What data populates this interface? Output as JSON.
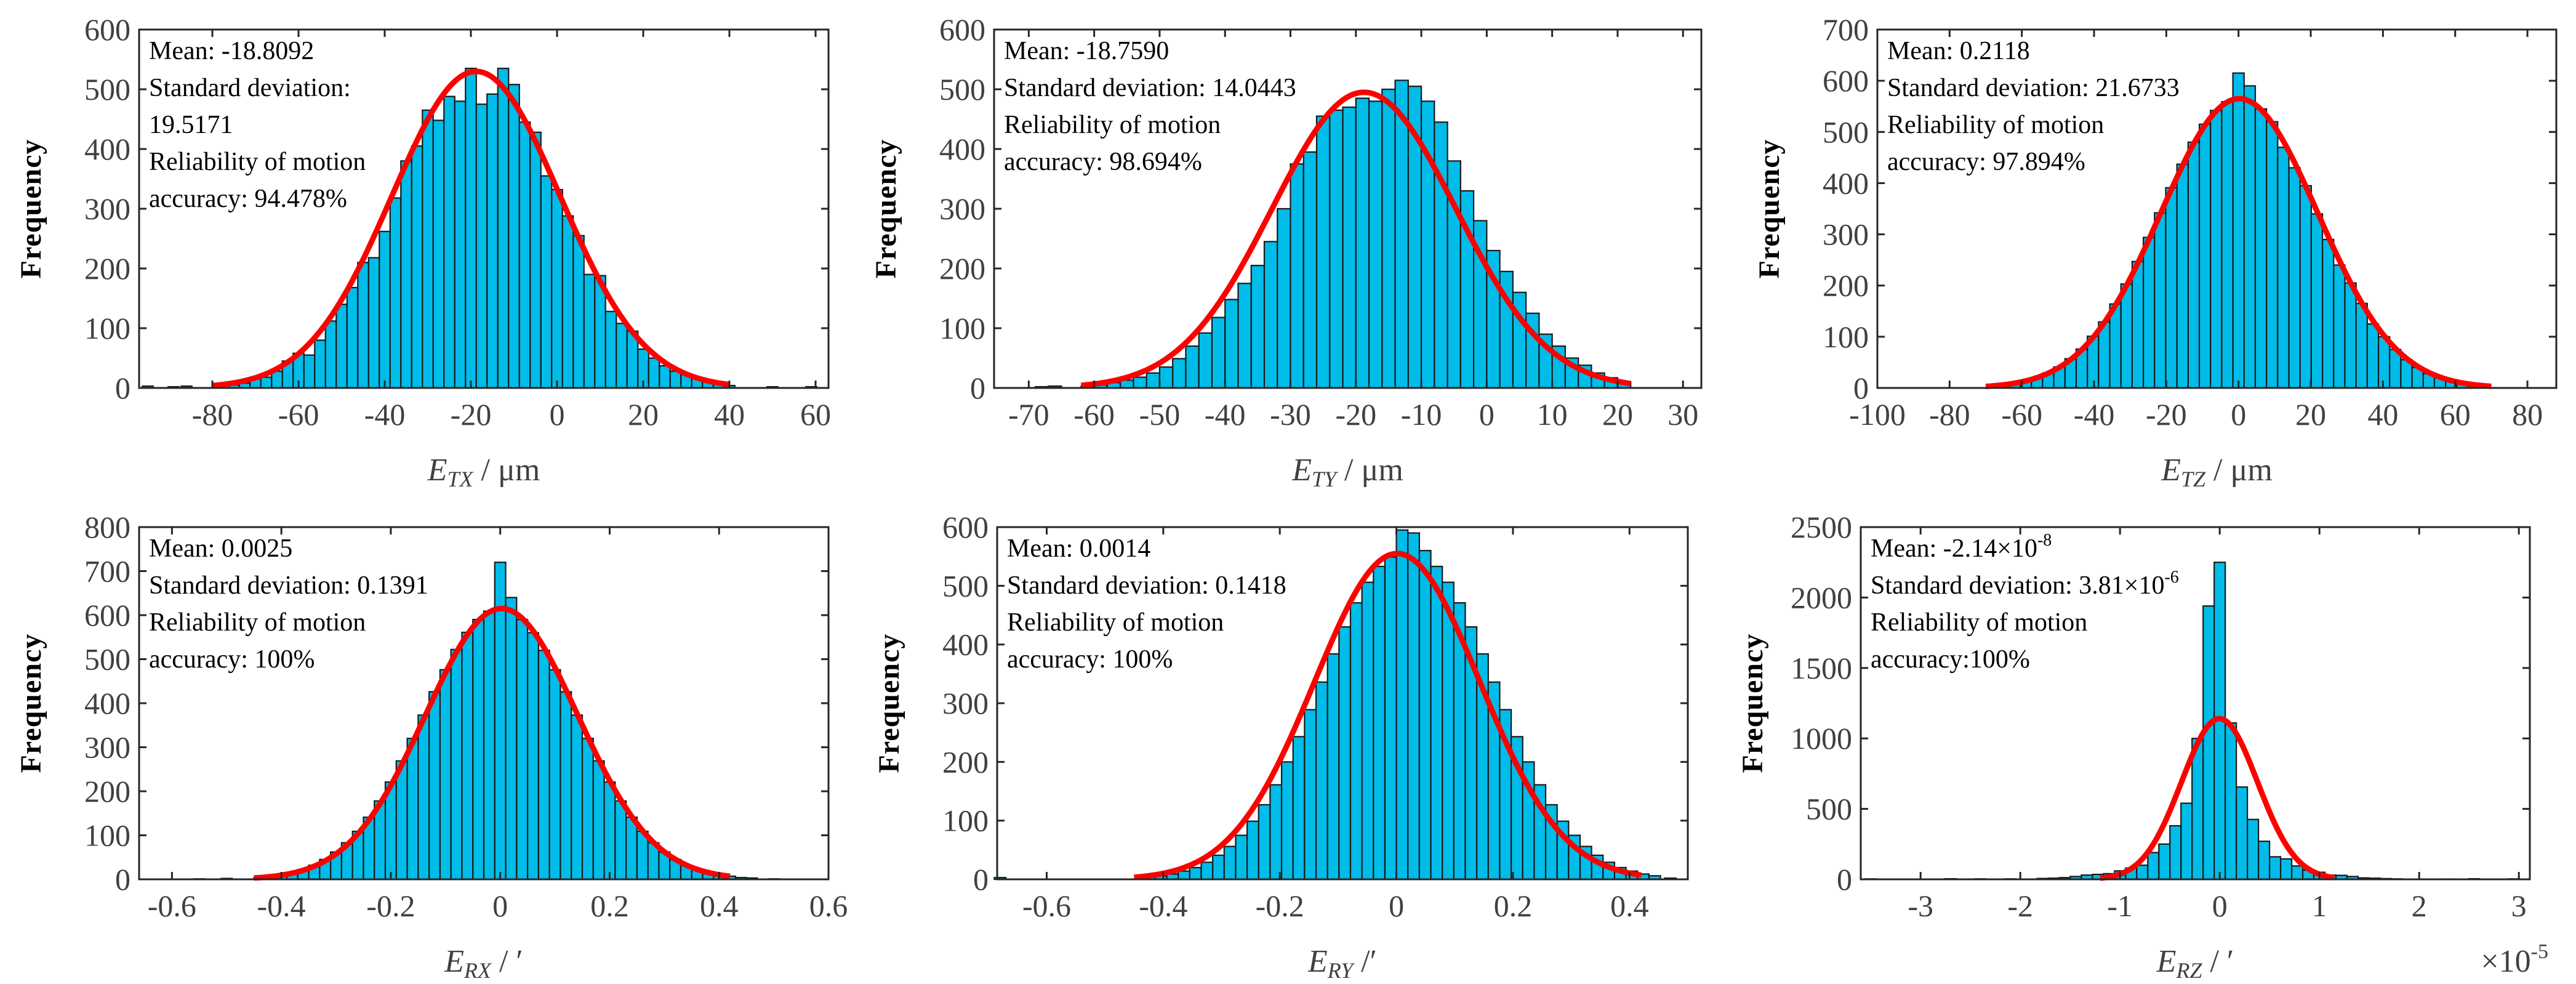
{
  "colors": {
    "bar": "#00bce9",
    "bar_edge": "#1a1a1a",
    "fit": "#ff0000"
  },
  "chart_data": [
    {
      "type": "bar",
      "title": "",
      "xlabel": {
        "var": "E",
        "sub": "TX",
        "unit": " / μm"
      },
      "ylabel": "Frequency",
      "xlim": [
        -97,
        63
      ],
      "ylim": [
        0,
        600
      ],
      "xticks": [
        -80,
        -60,
        -40,
        -20,
        0,
        20,
        40,
        60
      ],
      "xtick_labels": [
        "-80",
        "-60",
        "-40",
        "-20",
        "0",
        "20",
        "40",
        "60"
      ],
      "yticks": [
        0,
        100,
        200,
        300,
        400,
        500,
        600
      ],
      "ytick_labels": [
        "0",
        "100",
        "200",
        "300",
        "400",
        "500",
        "600"
      ],
      "bins": {
        "start": -76.25,
        "width": 2.5,
        "counts": [
          5,
          8,
          15,
          18,
          28,
          45,
          58,
          55,
          80,
          112,
          140,
          168,
          210,
          218,
          262,
          318,
          380,
          405,
          465,
          448,
          488,
          480,
          535,
          475,
          492,
          535,
          508,
          445,
          428,
          355,
          332,
          288,
          255,
          190,
          188,
          128,
          108,
          95,
          65,
          50,
          37,
          28,
          22,
          17,
          10,
          6,
          4
        ]
      },
      "sparse_bins": [
        [
          -95,
          3
        ],
        [
          -89,
          2
        ],
        [
          -86,
          3
        ],
        [
          50,
          2
        ],
        [
          59,
          2
        ]
      ],
      "fit": {
        "mean": -18.8092,
        "sd": 19.5171,
        "peak": 530,
        "range": [
          -80,
          40
        ]
      },
      "annotation": [
        {
          "text": "Mean: -18.8092"
        },
        {
          "text": "Standard deviation:"
        },
        {
          "text": "19.5171"
        },
        {
          "text": "Reliability of motion"
        },
        {
          "text": "accuracy: 94.478%"
        }
      ]
    },
    {
      "type": "bar",
      "title": "",
      "xlabel": {
        "var": "E",
        "sub": "TY",
        "unit": " / μm"
      },
      "ylabel": "Frequency",
      "xlim": [
        -75.3,
        32.8
      ],
      "ylim": [
        0,
        600
      ],
      "xticks": [
        -70,
        -60,
        -50,
        -40,
        -30,
        -20,
        -10,
        0,
        10,
        20,
        30
      ],
      "xtick_labels": [
        "-70",
        "-60",
        "-50",
        "-40",
        "-30",
        "-20",
        "-10",
        "0",
        "10",
        "20",
        "30"
      ],
      "yticks": [
        0,
        100,
        200,
        300,
        400,
        500,
        600
      ],
      "ytick_labels": [
        "0",
        "100",
        "200",
        "300",
        "400",
        "500",
        "600"
      ],
      "bins": {
        "start": -62,
        "width": 2,
        "counts": [
          3,
          5,
          9,
          13,
          18,
          25,
          35,
          49,
          70,
          92,
          118,
          148,
          175,
          205,
          245,
          300,
          375,
          395,
          455,
          465,
          470,
          485,
          480,
          500,
          515,
          505,
          480,
          445,
          380,
          330,
          280,
          230,
          195,
          160,
          125,
          90,
          70,
          50,
          38,
          25,
          17,
          10
        ]
      },
      "sparse_bins": [
        [
          -68,
          2
        ],
        [
          -66,
          3
        ]
      ],
      "fit": {
        "mean": -18.759,
        "sd": 14.0443,
        "peak": 495,
        "range": [
          -62,
          22
        ]
      },
      "annotation": [
        {
          "text": "Mean: -18.7590"
        },
        {
          "text": "Standard deviation: 14.0443"
        },
        {
          "text": "Reliability of motion"
        },
        {
          "text": "accuracy: 98.694%"
        }
      ]
    },
    {
      "type": "bar",
      "title": "",
      "xlabel": {
        "var": "E",
        "sub": "TZ",
        "unit": " / μm"
      },
      "ylabel": "Frequency",
      "xlim": [
        -100,
        88
      ],
      "ylim": [
        0,
        700
      ],
      "xticks": [
        -100,
        -80,
        -60,
        -40,
        -20,
        0,
        20,
        40,
        60,
        80
      ],
      "xtick_labels": [
        "-100",
        "-80",
        "-60",
        "-40",
        "-20",
        "0",
        "20",
        "40",
        "60",
        "80"
      ],
      "yticks": [
        0,
        100,
        200,
        300,
        400,
        500,
        600,
        700
      ],
      "ytick_labels": [
        "0",
        "100",
        "200",
        "300",
        "400",
        "500",
        "600",
        "700"
      ],
      "bins": {
        "start": -69.75,
        "width": 3.1,
        "counts": [
          4,
          6,
          10,
          14,
          20,
          29,
          41,
          57,
          76,
          101,
          129,
          164,
          203,
          247,
          294,
          342,
          391,
          437,
          480,
          515,
          542,
          559,
          615,
          590,
          545,
          520,
          470,
          430,
          395,
          340,
          290,
          240,
          205,
          165,
          125,
          100,
          75,
          55,
          40,
          28,
          20,
          14,
          10,
          6,
          4
        ]
      },
      "sparse_bins": [],
      "fit": {
        "mean": 0.2118,
        "sd": 21.6733,
        "peak": 565,
        "range": [
          -70,
          70
        ]
      },
      "annotation": [
        {
          "text": "Mean: 0.2118"
        },
        {
          "text": "Standard deviation: 21.6733"
        },
        {
          "text": "Reliability of motion"
        },
        {
          "text": "accuracy: 97.894%"
        }
      ]
    },
    {
      "type": "bar",
      "title": "",
      "xlabel": {
        "var": "E",
        "sub": "RX",
        "unit": " / ′"
      },
      "ylabel": "Frequency",
      "xlim": [
        -0.66,
        0.6
      ],
      "ylim": [
        0,
        800
      ],
      "xticks": [
        -0.6,
        -0.4,
        -0.2,
        0,
        0.2,
        0.4,
        0.6
      ],
      "xtick_labels": [
        "-0.6",
        "-0.4",
        "-0.2",
        "0",
        "0.2",
        "0.4",
        "0.6"
      ],
      "yticks": [
        0,
        100,
        200,
        300,
        400,
        500,
        600,
        700,
        800
      ],
      "ytick_labels": [
        "0",
        "100",
        "200",
        "300",
        "400",
        "500",
        "600",
        "700",
        "800"
      ],
      "bins": {
        "start": -0.45,
        "width": 0.02,
        "counts": [
          4,
          7,
          10,
          15,
          22,
          32,
          45,
          62,
          83,
          109,
          141,
          178,
          221,
          269,
          320,
          373,
          426,
          476,
          522,
          561,
          590,
          609,
          720,
          640,
          590,
          560,
          520,
          476,
          426,
          373,
          320,
          269,
          221,
          178,
          141,
          109,
          83,
          62,
          45,
          32,
          22,
          15,
          10,
          7,
          4
        ]
      },
      "sparse_bins": [
        [
          -0.55,
          1
        ],
        [
          -0.5,
          2
        ],
        [
          0.46,
          3
        ],
        [
          0.5,
          1
        ]
      ],
      "fit": {
        "mean": 0.0025,
        "sd": 0.1391,
        "peak": 615,
        "range": [
          -0.45,
          0.42
        ]
      },
      "annotation": [
        {
          "text": "Mean: 0.0025"
        },
        {
          "text": "Standard deviation: 0.1391"
        },
        {
          "text": "Reliability of motion"
        },
        {
          "text": "accuracy: 100%"
        }
      ]
    },
    {
      "type": "bar",
      "title": "",
      "xlabel": {
        "var": "E",
        "sub": "RY",
        "unit": " /′"
      },
      "ylabel": "Frequency",
      "xlim": [
        -0.685,
        0.5
      ],
      "ylim": [
        0,
        600
      ],
      "xticks": [
        -0.6,
        -0.4,
        -0.2,
        0,
        0.2,
        0.4
      ],
      "xtick_labels": [
        "-0.6",
        "-0.4",
        "-0.2",
        "0",
        "0.2",
        "0.4"
      ],
      "yticks": [
        0,
        100,
        200,
        300,
        400,
        500,
        600
      ],
      "ytick_labels": [
        "0",
        "100",
        "200",
        "300",
        "400",
        "500",
        "600"
      ],
      "bins": {
        "start": -0.4334,
        "width": 0.0197,
        "counts": [
          4,
          6,
          9,
          14,
          20,
          29,
          41,
          56,
          75,
          99,
          127,
          161,
          200,
          243,
          289,
          336,
          384,
          430,
          471,
          506,
          533,
          549,
          595,
          590,
          560,
          533,
          506,
          471,
          430,
          384,
          336,
          289,
          243,
          200,
          161,
          127,
          99,
          75,
          56,
          41,
          29,
          20,
          14,
          9,
          6
        ]
      },
      "sparse_bins": [
        [
          -0.68,
          3
        ],
        [
          0.47,
          2
        ]
      ],
      "fit": {
        "mean": 0.0014,
        "sd": 0.1418,
        "peak": 555,
        "range": [
          -0.45,
          0.42
        ]
      },
      "annotation": [
        {
          "text": "Mean: 0.0014"
        },
        {
          "text": "Standard deviation: 0.1418"
        },
        {
          "text": "Reliability of motion"
        },
        {
          "text": "accuracy: 100%"
        }
      ]
    },
    {
      "type": "bar",
      "title": "",
      "xlabel": {
        "var": "E",
        "sub": "RZ",
        "unit": " / ′"
      },
      "ylabel": "Frequency",
      "x_multiplier": {
        "text": "×10",
        "sup": "-5"
      },
      "xlim": [
        -3.6,
        3.11
      ],
      "ylim": [
        0,
        2500
      ],
      "xticks": [
        -3,
        -2,
        -1,
        0,
        1,
        2,
        3
      ],
      "xtick_labels": [
        "-3",
        "-2",
        "-1",
        "0",
        "1",
        "2",
        "3"
      ],
      "yticks": [
        0,
        500,
        1000,
        1500,
        2000,
        2500
      ],
      "ytick_labels": [
        "0",
        "500",
        "1000",
        "1500",
        "2000",
        "2500"
      ],
      "bins": {
        "start": -1.8315,
        "width": 0.111,
        "counts": [
          6,
          8,
          12,
          20,
          30,
          35,
          40,
          60,
          80,
          100,
          190,
          250,
          380,
          540,
          1000,
          1940,
          2250,
          1110,
          655,
          425,
          270,
          160,
          145,
          95,
          65,
          50,
          30,
          28,
          20,
          10,
          8,
          5,
          3
        ]
      },
      "sparse_bins": [
        [
          -3.5,
          3
        ],
        [
          -2.7,
          4
        ],
        [
          -2.4,
          3
        ],
        [
          -2.1,
          3
        ],
        [
          2.3,
          2
        ],
        [
          2.55,
          4
        ],
        [
          2.95,
          3
        ]
      ],
      "fit": {
        "mean": -0.00214,
        "sd": 0.381,
        "peak": 1140,
        "range": [
          -1.2,
          1.15
        ]
      },
      "annotation": [
        {
          "text": "Mean: -2.14×10",
          "sup": "-8"
        },
        {
          "text": "Standard deviation: 3.81×10",
          "sup": "-6"
        },
        {
          "text": "Reliability of motion"
        },
        {
          "text": "accuracy:100%"
        }
      ]
    }
  ]
}
